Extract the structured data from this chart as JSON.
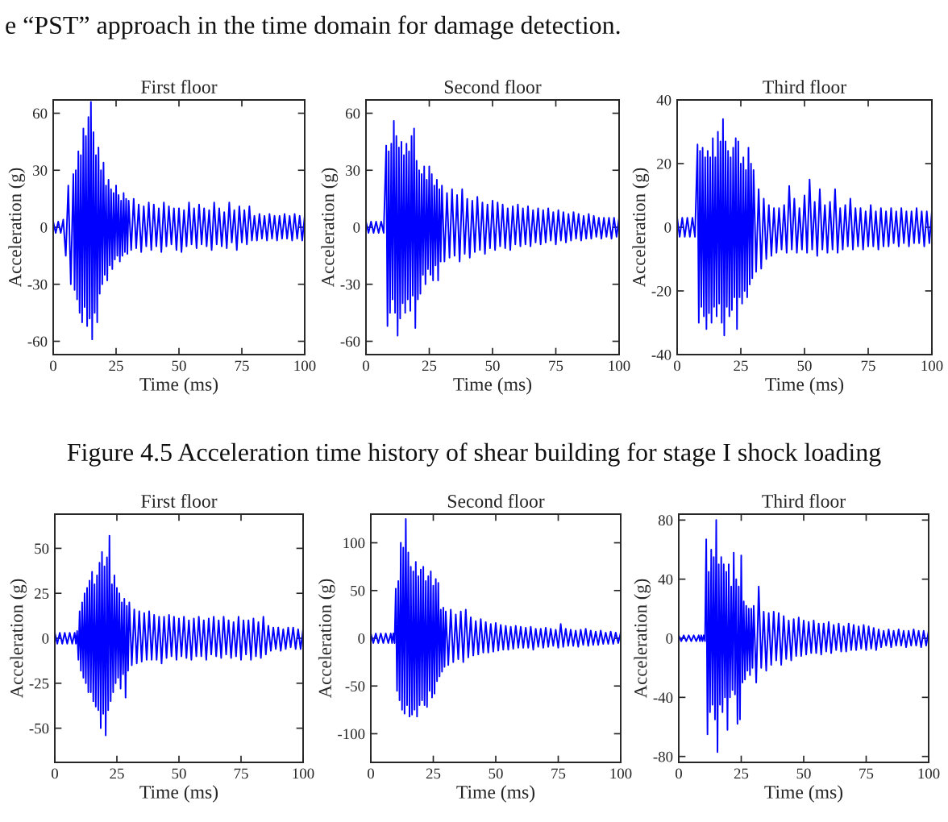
{
  "chart_data": [
    {
      "type": "line",
      "title": "First floor",
      "xlabel": "Time (ms)",
      "ylabel": "Acceleration (g)",
      "color": "#0000ff",
      "xlim": [
        0,
        100
      ],
      "xticks": [
        0,
        25,
        50,
        75,
        100
      ],
      "ylim": [
        -67,
        67
      ],
      "yticks": [
        -60,
        -30,
        0,
        30,
        60
      ],
      "annotations": [
        "e “PST” approach in the time domain for damage detection."
      ],
      "x": [
        0,
        1,
        2,
        3,
        4,
        5,
        6,
        7,
        8,
        8.5,
        9,
        9.5,
        10,
        10.5,
        11,
        11.5,
        12,
        12.5,
        13,
        13.5,
        14,
        14.5,
        15,
        15.5,
        16,
        16.5,
        17,
        17.5,
        18,
        18.5,
        19,
        19.5,
        20,
        20.5,
        21,
        21.5,
        22,
        22.5,
        23,
        23.5,
        24,
        24.5,
        25,
        25.5,
        26,
        26.5,
        27,
        27.5,
        28,
        28.5,
        29,
        29.5,
        30,
        31,
        32,
        33,
        34,
        35,
        36,
        37,
        38,
        39,
        40,
        41,
        42,
        43,
        44,
        45,
        46,
        47,
        48,
        49,
        50,
        51,
        52,
        53,
        54,
        55,
        56,
        57,
        58,
        59,
        60,
        61,
        62,
        63,
        64,
        65,
        66,
        67,
        68,
        69,
        70,
        71,
        72,
        73,
        74,
        75,
        76,
        77,
        78,
        79,
        80,
        81,
        82,
        83,
        84,
        85,
        86,
        87,
        88,
        89,
        90,
        91,
        92,
        93,
        94,
        95,
        96,
        97,
        98,
        99,
        100
      ],
      "values": [
        3,
        -3,
        3,
        -3,
        4,
        -15,
        22,
        -30,
        28,
        -33,
        30,
        -38,
        40,
        -45,
        38,
        -50,
        52,
        -42,
        48,
        -52,
        58,
        -48,
        66,
        -59,
        50,
        -45,
        38,
        -50,
        42,
        -35,
        30,
        -30,
        34,
        -25,
        22,
        -28,
        25,
        -20,
        20,
        -22,
        18,
        -17,
        22,
        -15,
        17,
        -18,
        14,
        -15,
        18,
        -13,
        15,
        -14,
        14,
        -12,
        15,
        -11,
        12,
        -13,
        11,
        -10,
        13,
        -12,
        12,
        -10,
        10,
        -13,
        13,
        -10,
        11,
        -9,
        10,
        -12,
        10,
        -13,
        9,
        -10,
        13,
        -9,
        10,
        -11,
        12,
        -9,
        10,
        -10,
        9,
        -12,
        13,
        -9,
        10,
        -10,
        8,
        -11,
        13,
        -8,
        9,
        -12,
        11,
        -8,
        9,
        -9,
        11,
        -7,
        6,
        -7,
        7,
        -6,
        6,
        -7,
        7,
        -6,
        6,
        -7,
        6,
        -6,
        7,
        -6,
        6,
        -7,
        7,
        -6,
        6,
        -7,
        6
      ]
    },
    {
      "type": "line",
      "title": "Second floor",
      "xlabel": "Time (ms)",
      "ylabel": "Acceleration (g)",
      "color": "#0000ff",
      "xlim": [
        0,
        100
      ],
      "xticks": [
        0,
        25,
        50,
        75,
        100
      ],
      "ylim": [
        -67,
        67
      ],
      "yticks": [
        -60,
        -30,
        0,
        30,
        60
      ],
      "x": [
        0,
        1,
        2,
        3,
        4,
        5,
        6,
        7,
        8,
        8.5,
        9,
        9.5,
        10,
        10.5,
        11,
        11.5,
        12,
        12.5,
        13,
        13.5,
        14,
        14.5,
        15,
        15.5,
        16,
        16.5,
        17,
        17.5,
        18,
        18.5,
        19,
        19.5,
        20,
        20.5,
        21,
        21.5,
        22,
        22.5,
        23,
        23.5,
        24,
        24.5,
        25,
        25.5,
        26,
        26.5,
        27,
        27.5,
        28,
        28.5,
        29,
        29.5,
        30,
        31,
        32,
        33,
        34,
        35,
        36,
        37,
        38,
        39,
        40,
        41,
        42,
        43,
        44,
        45,
        46,
        47,
        48,
        49,
        50,
        51,
        52,
        53,
        54,
        55,
        56,
        57,
        58,
        59,
        60,
        61,
        62,
        63,
        64,
        65,
        66,
        67,
        68,
        69,
        70,
        71,
        72,
        73,
        74,
        75,
        76,
        77,
        78,
        79,
        80,
        81,
        82,
        83,
        84,
        85,
        86,
        87,
        88,
        89,
        90,
        91,
        92,
        93,
        94,
        95,
        96,
        97,
        98,
        99,
        100
      ],
      "values": [
        3,
        -3,
        3,
        -3,
        3,
        -3,
        3,
        -3,
        43,
        -52,
        40,
        -45,
        44,
        -38,
        56,
        -45,
        48,
        -57,
        42,
        -48,
        45,
        -40,
        38,
        -45,
        44,
        -38,
        40,
        -44,
        48,
        -36,
        52,
        -53,
        35,
        -38,
        30,
        -35,
        28,
        -25,
        32,
        -30,
        25,
        -22,
        32,
        -25,
        28,
        -28,
        22,
        -20,
        25,
        -28,
        20,
        -18,
        22,
        -18,
        18,
        -16,
        20,
        -15,
        17,
        -18,
        20,
        -14,
        15,
        -16,
        14,
        -13,
        16,
        -12,
        13,
        -14,
        12,
        -11,
        14,
        -12,
        13,
        -10,
        12,
        -11,
        10,
        -12,
        11,
        -9,
        12,
        -10,
        10,
        -9,
        11,
        -10,
        9,
        -8,
        10,
        -9,
        9,
        -8,
        10,
        -7,
        8,
        -9,
        9,
        -7,
        8,
        -8,
        7,
        -7,
        8,
        -6,
        7,
        -7,
        6,
        -6,
        7,
        -6,
        6,
        -5,
        5,
        -6,
        5,
        -5,
        5,
        -6,
        5,
        -5,
        5
      ]
    },
    {
      "type": "line",
      "title": "Third floor",
      "xlabel": "Time (ms)",
      "ylabel": "Acceleration (g)",
      "color": "#0000ff",
      "xlim": [
        0,
        100
      ],
      "xticks": [
        0,
        25,
        50,
        75,
        100
      ],
      "ylim": [
        -40,
        40
      ],
      "yticks": [
        -40,
        -20,
        0,
        20,
        40
      ],
      "x": [
        0,
        1,
        2,
        3,
        4,
        5,
        6,
        7,
        8,
        8.5,
        9,
        9.5,
        10,
        10.5,
        11,
        11.5,
        12,
        12.5,
        13,
        13.5,
        14,
        14.5,
        15,
        15.5,
        16,
        16.5,
        17,
        17.5,
        18,
        18.5,
        19,
        19.5,
        20,
        20.5,
        21,
        21.5,
        22,
        22.5,
        23,
        23.5,
        24,
        24.5,
        25,
        25.5,
        26,
        26.5,
        27,
        27.5,
        28,
        28.5,
        29,
        29.5,
        30,
        31,
        32,
        33,
        34,
        35,
        36,
        37,
        38,
        39,
        40,
        41,
        42,
        43,
        44,
        45,
        46,
        47,
        48,
        49,
        50,
        51,
        52,
        53,
        54,
        55,
        56,
        57,
        58,
        59,
        60,
        61,
        62,
        63,
        64,
        65,
        66,
        67,
        68,
        69,
        70,
        71,
        72,
        73,
        74,
        75,
        76,
        77,
        78,
        79,
        80,
        81,
        82,
        83,
        84,
        85,
        86,
        87,
        88,
        89,
        90,
        91,
        92,
        93,
        94,
        95,
        96,
        97,
        98,
        99,
        100
      ],
      "values": [
        3,
        -3,
        3,
        -3,
        3,
        -3,
        3,
        -3,
        26,
        -30,
        24,
        -25,
        25,
        -28,
        22,
        -32,
        24,
        -27,
        22,
        -30,
        28,
        -25,
        22,
        -28,
        30,
        -24,
        27,
        -30,
        34,
        -34,
        27,
        -25,
        24,
        -28,
        22,
        -26,
        25,
        -22,
        28,
        -32,
        27,
        -22,
        20,
        -24,
        22,
        -20,
        18,
        -22,
        25,
        -18,
        20,
        -16,
        18,
        -14,
        12,
        -13,
        9,
        -10,
        7,
        -9,
        6,
        -8,
        6,
        -7,
        7,
        -8,
        13,
        -7,
        9,
        -8,
        6,
        -7,
        10,
        -8,
        15,
        -7,
        8,
        -9,
        12,
        -7,
        7,
        -8,
        8,
        -7,
        12,
        -8,
        6,
        -7,
        7,
        -6,
        9,
        -7,
        6,
        -6,
        6,
        -7,
        5,
        -6,
        7,
        -6,
        5,
        -7,
        6,
        -6,
        5,
        -6,
        6,
        -5,
        5,
        -6,
        6,
        -5,
        5,
        -6,
        5,
        -5,
        6,
        -5,
        5,
        -6,
        5,
        -5,
        5
      ]
    },
    {
      "type": "line",
      "title": "First floor",
      "xlabel": "Time (ms)",
      "ylabel": "Acceleration (g)",
      "color": "#0000ff",
      "xlim": [
        0,
        100
      ],
      "xticks": [
        0,
        25,
        50,
        75,
        100
      ],
      "ylim": [
        -69,
        69
      ],
      "yticks": [
        -50,
        -25,
        0,
        25,
        50
      ],
      "annotations": [
        "Figure 4.5 Acceleration time history of shear building for stage I shock loading"
      ],
      "x": [
        0,
        1,
        2,
        3,
        4,
        5,
        6,
        7,
        8,
        8.5,
        9,
        9.5,
        10,
        10.5,
        11,
        11.5,
        12,
        12.5,
        13,
        13.5,
        14,
        14.5,
        15,
        15.5,
        16,
        16.5,
        17,
        17.5,
        18,
        18.5,
        19,
        19.5,
        20,
        20.5,
        21,
        21.5,
        22,
        22.5,
        23,
        23.5,
        24,
        24.5,
        25,
        25.5,
        26,
        26.5,
        27,
        27.5,
        28,
        28.5,
        29,
        29.5,
        30,
        31,
        32,
        33,
        34,
        35,
        36,
        37,
        38,
        39,
        40,
        41,
        42,
        43,
        44,
        45,
        46,
        47,
        48,
        49,
        50,
        51,
        52,
        53,
        54,
        55,
        56,
        57,
        58,
        59,
        60,
        61,
        62,
        63,
        64,
        65,
        66,
        67,
        68,
        69,
        70,
        71,
        72,
        73,
        74,
        75,
        76,
        77,
        78,
        79,
        80,
        81,
        82,
        83,
        84,
        85,
        86,
        87,
        88,
        89,
        90,
        91,
        92,
        93,
        94,
        95,
        96,
        97,
        98,
        99,
        100
      ],
      "values": [
        3,
        -3,
        3,
        -3,
        3,
        -3,
        3,
        -3,
        3,
        -3,
        4,
        -12,
        15,
        -18,
        20,
        -22,
        25,
        -25,
        28,
        -30,
        32,
        -30,
        37,
        -35,
        30,
        -38,
        35,
        -40,
        42,
        -50,
        48,
        -42,
        40,
        -54,
        45,
        -40,
        57,
        -35,
        30,
        -30,
        35,
        -25,
        28,
        -22,
        25,
        -28,
        20,
        -20,
        22,
        -33,
        18,
        -18,
        20,
        -15,
        16,
        -14,
        15,
        -13,
        14,
        -12,
        15,
        -12,
        13,
        -12,
        12,
        -14,
        12,
        -11,
        13,
        -10,
        12,
        -12,
        11,
        -10,
        12,
        -11,
        10,
        -12,
        11,
        -10,
        12,
        -10,
        10,
        -12,
        11,
        -9,
        12,
        -10,
        10,
        -11,
        12,
        -9,
        10,
        -11,
        9,
        -10,
        12,
        -12,
        10,
        -9,
        10,
        -12,
        11,
        -10,
        9,
        -11,
        12,
        -9,
        7,
        -7,
        6,
        -6,
        6,
        -7,
        5,
        -6,
        6,
        -5,
        6,
        -6,
        5,
        -6,
        5
      ]
    },
    {
      "type": "line",
      "title": "Second floor",
      "xlabel": "Time (ms)",
      "ylabel": "Acceleration (g)",
      "color": "#0000ff",
      "xlim": [
        0,
        100
      ],
      "xticks": [
        0,
        25,
        50,
        75,
        100
      ],
      "ylim": [
        -130,
        130
      ],
      "yticks": [
        -100,
        -50,
        0,
        50,
        100
      ],
      "x": [
        0,
        1,
        2,
        3,
        4,
        5,
        6,
        7,
        8,
        8.5,
        9,
        9.5,
        10,
        10.5,
        11,
        11.5,
        12,
        12.5,
        13,
        13.5,
        14,
        14.5,
        15,
        15.5,
        16,
        16.5,
        17,
        17.5,
        18,
        18.5,
        19,
        19.5,
        20,
        20.5,
        21,
        21.5,
        22,
        22.5,
        23,
        23.5,
        24,
        24.5,
        25,
        25.5,
        26,
        26.5,
        27,
        27.5,
        28,
        28.5,
        29,
        29.5,
        30,
        31,
        32,
        33,
        34,
        35,
        36,
        37,
        38,
        39,
        40,
        41,
        42,
        43,
        44,
        45,
        46,
        47,
        48,
        49,
        50,
        51,
        52,
        53,
        54,
        55,
        56,
        57,
        58,
        59,
        60,
        61,
        62,
        63,
        64,
        65,
        66,
        67,
        68,
        69,
        70,
        71,
        72,
        73,
        74,
        75,
        76,
        77,
        78,
        79,
        80,
        81,
        82,
        83,
        84,
        85,
        86,
        87,
        88,
        89,
        90,
        91,
        92,
        93,
        94,
        95,
        96,
        97,
        98,
        99,
        100
      ],
      "values": [
        5,
        -5,
        5,
        -5,
        5,
        -5,
        5,
        -5,
        5,
        -5,
        5,
        -5,
        52,
        -55,
        60,
        -65,
        100,
        -75,
        95,
        -79,
        125,
        -70,
        90,
        -82,
        75,
        -80,
        70,
        -75,
        80,
        -82,
        65,
        -70,
        72,
        -65,
        75,
        -70,
        60,
        -72,
        65,
        -55,
        70,
        -62,
        55,
        -58,
        62,
        -45,
        58,
        -40,
        30,
        -35,
        32,
        -30,
        28,
        -28,
        30,
        -25,
        25,
        -22,
        28,
        -25,
        30,
        -20,
        22,
        -18,
        18,
        -17,
        20,
        -15,
        17,
        -15,
        15,
        -14,
        16,
        -13,
        14,
        -12,
        13,
        -12,
        12,
        -11,
        13,
        -10,
        12,
        -10,
        11,
        -10,
        12,
        -12,
        10,
        -9,
        10,
        -10,
        11,
        -9,
        10,
        -8,
        9,
        -10,
        15,
        -9,
        10,
        -8,
        9,
        -8,
        8,
        -9,
        9,
        -7,
        10,
        -8,
        8,
        -7,
        7,
        -7,
        8,
        -6,
        6,
        -6,
        7,
        -6,
        6,
        -5,
        6
      ]
    },
    {
      "type": "line",
      "title": "Third floor",
      "xlabel": "Time (ms)",
      "ylabel": "Acceleration (g)",
      "color": "#0000ff",
      "xlim": [
        0,
        100
      ],
      "xticks": [
        0,
        25,
        50,
        75,
        100
      ],
      "ylim": [
        -84,
        84
      ],
      "yticks": [
        -80,
        -40,
        0,
        40,
        80
      ],
      "x": [
        0,
        1,
        2,
        3,
        4,
        5,
        6,
        7,
        8,
        8.5,
        9,
        9.5,
        10,
        10.5,
        11,
        11.5,
        12,
        12.5,
        13,
        13.5,
        14,
        14.5,
        15,
        15.5,
        16,
        16.5,
        17,
        17.5,
        18,
        18.5,
        19,
        19.5,
        20,
        20.5,
        21,
        21.5,
        22,
        22.5,
        23,
        23.5,
        24,
        24.5,
        25,
        25.5,
        26,
        26.5,
        27,
        27.5,
        28,
        28.5,
        29,
        29.5,
        30,
        31,
        32,
        33,
        34,
        35,
        36,
        37,
        38,
        39,
        40,
        41,
        42,
        43,
        44,
        45,
        46,
        47,
        48,
        49,
        50,
        51,
        52,
        53,
        54,
        55,
        56,
        57,
        58,
        59,
        60,
        61,
        62,
        63,
        64,
        65,
        66,
        67,
        68,
        69,
        70,
        71,
        72,
        73,
        74,
        75,
        76,
        77,
        78,
        79,
        80,
        81,
        82,
        83,
        84,
        85,
        86,
        87,
        88,
        89,
        90,
        91,
        92,
        93,
        94,
        95,
        96,
        97,
        98,
        99,
        100
      ],
      "values": [
        2,
        -2,
        2,
        -2,
        2,
        -2,
        2,
        -2,
        2,
        -2,
        2,
        -2,
        2,
        -2,
        67,
        -65,
        45,
        -50,
        60,
        -45,
        55,
        -55,
        80,
        -77,
        50,
        -45,
        55,
        -50,
        50,
        -40,
        45,
        -62,
        50,
        -40,
        35,
        -35,
        58,
        -38,
        40,
        -58,
        35,
        -55,
        56,
        -30,
        25,
        -28,
        22,
        -22,
        20,
        -25,
        20,
        -20,
        22,
        -30,
        35,
        -20,
        18,
        -22,
        17,
        -18,
        18,
        -15,
        17,
        -18,
        15,
        -14,
        12,
        -15,
        13,
        -12,
        14,
        -12,
        12,
        -11,
        11,
        -10,
        12,
        -10,
        10,
        -11,
        10,
        -9,
        11,
        -10,
        9,
        -8,
        10,
        -9,
        8,
        -9,
        10,
        -8,
        9,
        -8,
        8,
        -7,
        9,
        -8,
        8,
        -7,
        7,
        -8,
        6,
        -6,
        5,
        -5,
        6,
        -6,
        5,
        -5,
        6,
        -5,
        5,
        -6,
        5,
        -5,
        6,
        -5,
        5,
        -6,
        5,
        -5,
        5
      ]
    }
  ]
}
